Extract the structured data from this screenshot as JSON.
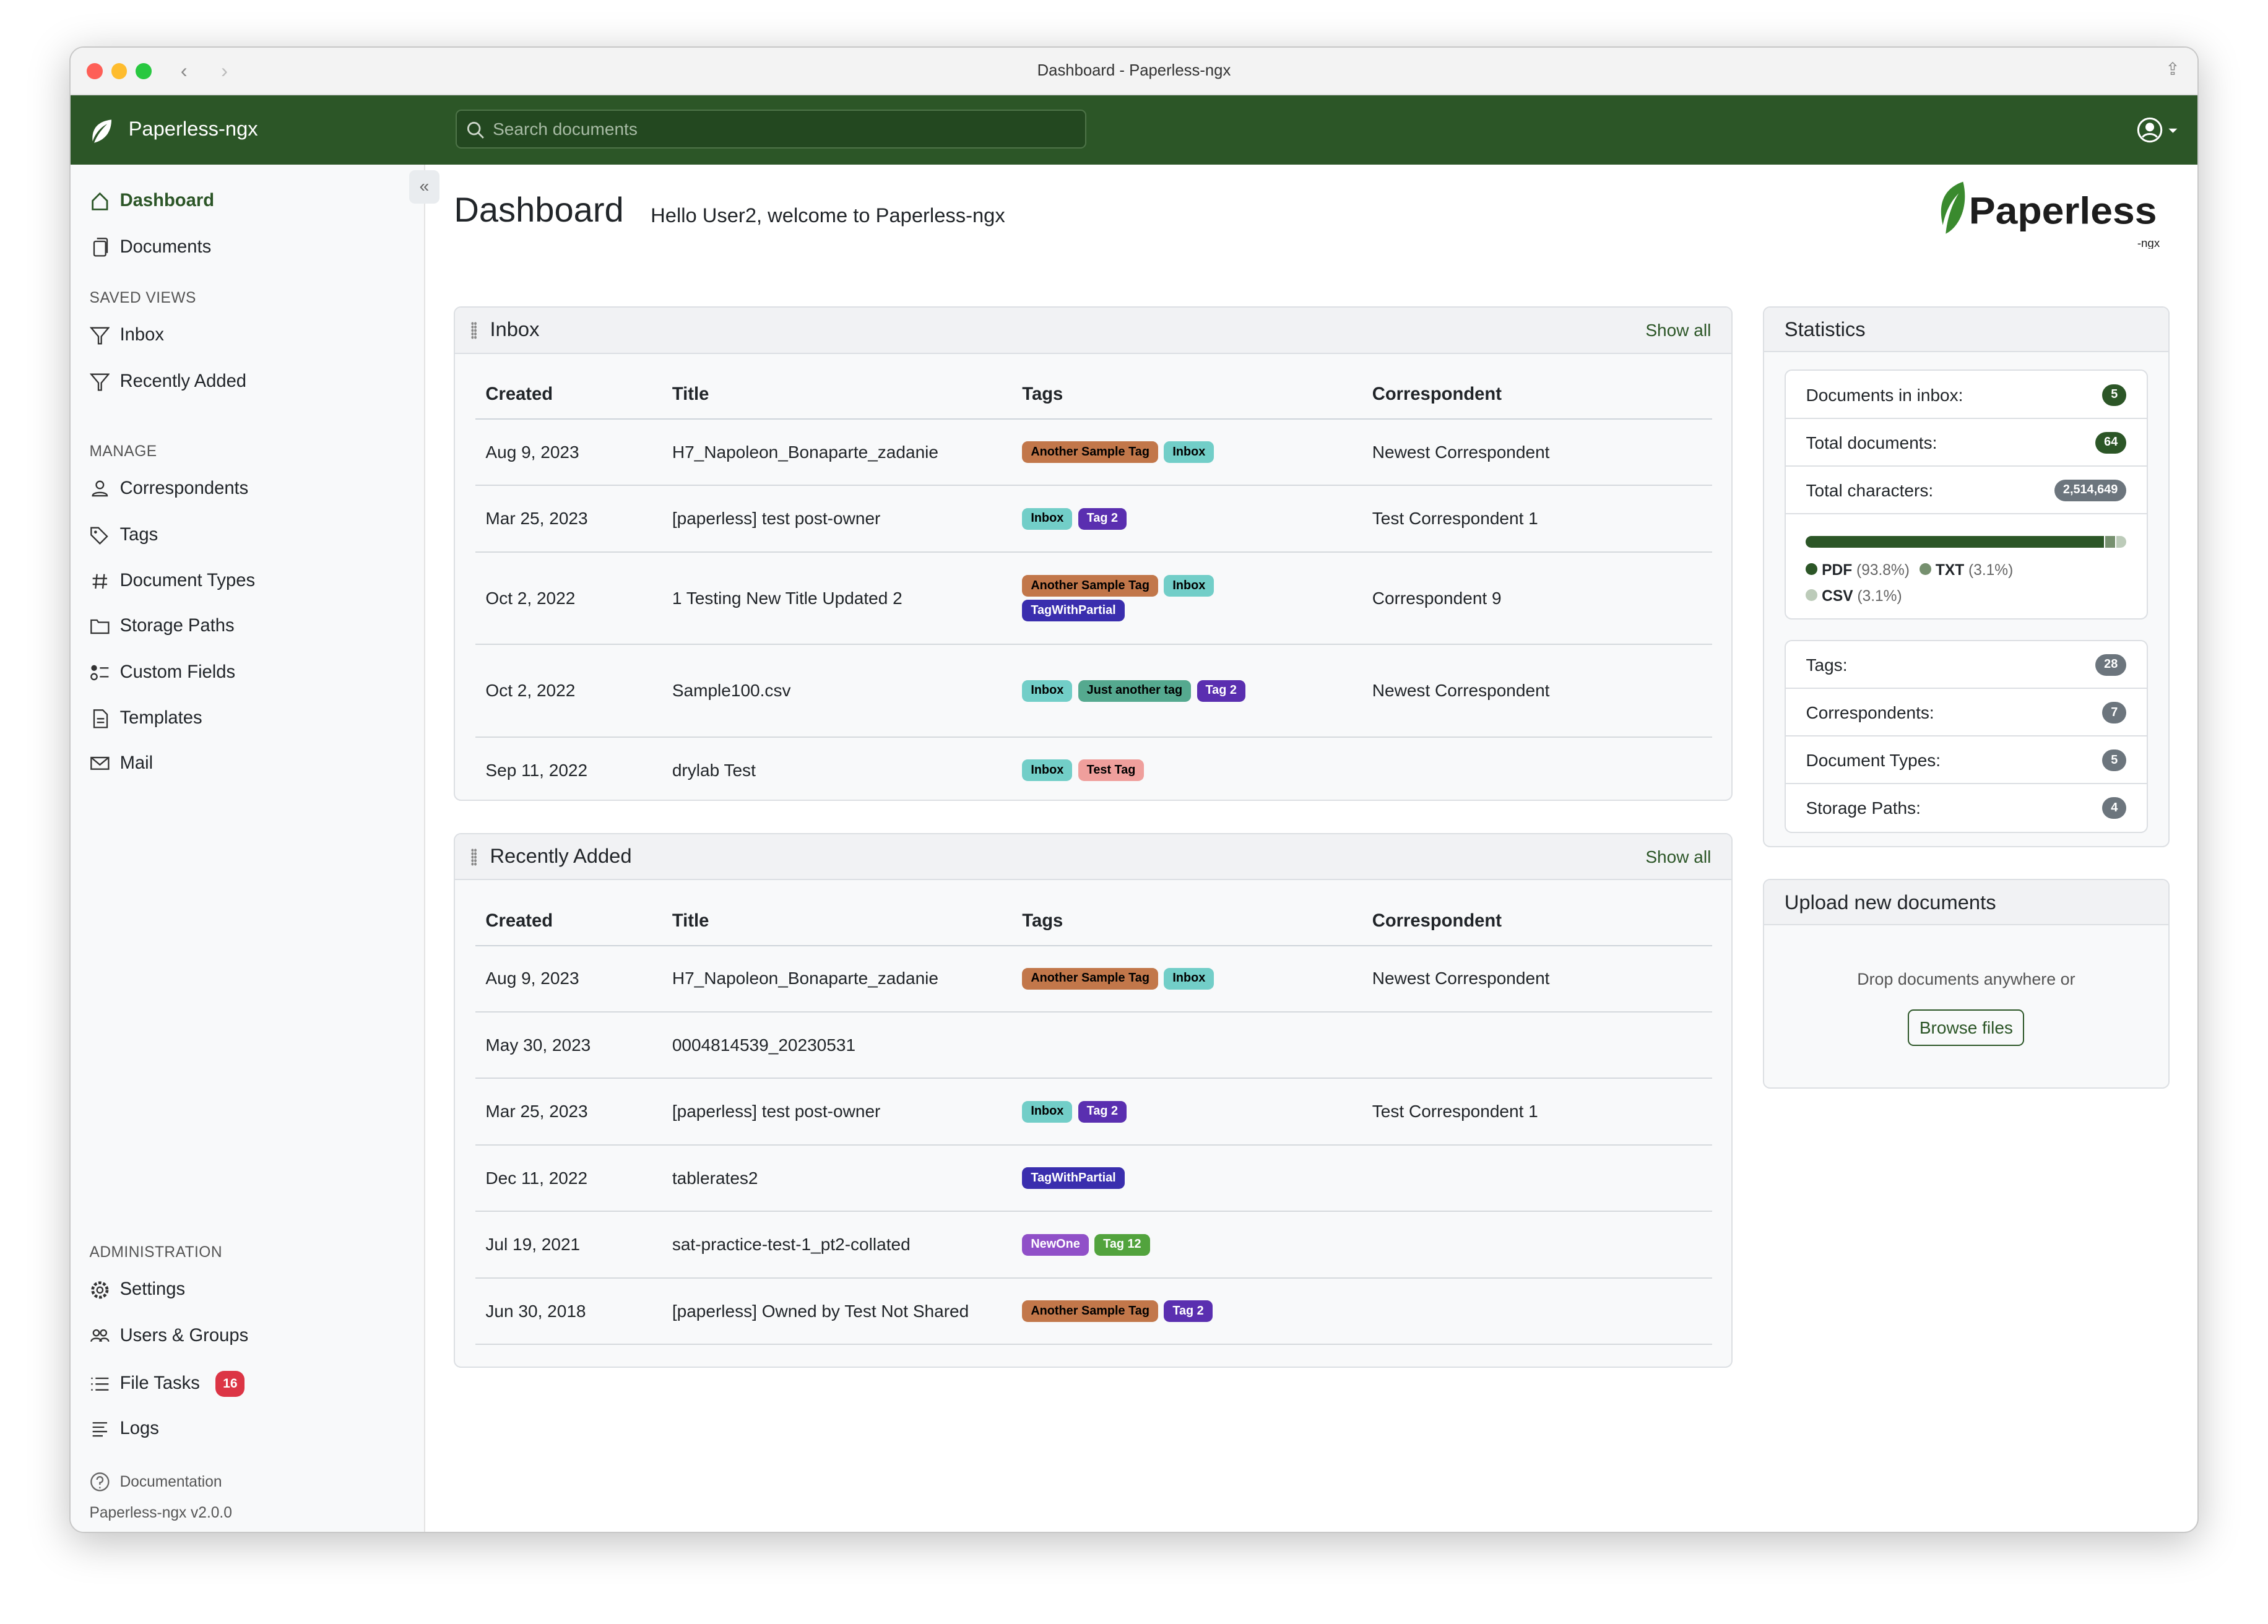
{
  "window": {
    "title": "Dashboard - Paperless-ngx"
  },
  "navbar": {
    "brand": "Paperless-ngx",
    "search_placeholder": "Search documents"
  },
  "sidebar": {
    "items": [
      {
        "label": "Dashboard"
      },
      {
        "label": "Documents"
      }
    ],
    "saved_views_heading": "SAVED VIEWS",
    "saved_views": [
      {
        "label": "Inbox"
      },
      {
        "label": "Recently Added"
      }
    ],
    "manage_heading": "MANAGE",
    "manage": [
      {
        "label": "Correspondents"
      },
      {
        "label": "Tags"
      },
      {
        "label": "Document Types"
      },
      {
        "label": "Storage Paths"
      },
      {
        "label": "Custom Fields"
      },
      {
        "label": "Templates"
      },
      {
        "label": "Mail"
      }
    ],
    "admin_heading": "ADMINISTRATION",
    "admin": [
      {
        "label": "Settings"
      },
      {
        "label": "Users & Groups"
      },
      {
        "label": "File Tasks",
        "badge": "16"
      },
      {
        "label": "Logs"
      }
    ],
    "documentation": "Documentation",
    "version": "Paperless-ngx v2.0.0"
  },
  "header": {
    "title": "Dashboard",
    "greeting": "Hello User2, welcome to Paperless-ngx",
    "logo_text": "Paperless",
    "logo_sub": "-ngx"
  },
  "columns": [
    "Created",
    "Title",
    "Tags",
    "Correspondent"
  ],
  "tag_colors": {
    "Another Sample Tag": [
      "#c2774a",
      "#000"
    ],
    "Inbox": [
      "#72cec8",
      "#000"
    ],
    "Tag 2": [
      "#5a2fb0",
      "#fff"
    ],
    "TagWithPartial": [
      "#3a2eae",
      "#fff"
    ],
    "Just another tag": [
      "#55a98f",
      "#000"
    ],
    "Test Tag": [
      "#ef9f9c",
      "#000"
    ],
    "NewOne": [
      "#9050c8",
      "#fff"
    ],
    "Tag 12": [
      "#52a33d",
      "#fff"
    ]
  },
  "inbox": {
    "title": "Inbox",
    "show_all": "Show all",
    "rows": [
      {
        "created": "Aug 9, 2023",
        "title": "H7_Napoleon_Bonaparte_zadanie",
        "tags": [
          "Another Sample Tag",
          "Inbox"
        ],
        "correspondent": "Newest Correspondent"
      },
      {
        "created": "Mar 25, 2023",
        "title": "[paperless] test post-owner",
        "tags": [
          "Inbox",
          "Tag 2"
        ],
        "correspondent": "Test Correspondent 1"
      },
      {
        "created": "Oct 2, 2022",
        "title": "1 Testing New Title Updated 2",
        "tags": [
          "Another Sample Tag",
          "Inbox",
          "TagWithPartial"
        ],
        "correspondent": "Correspondent 9"
      },
      {
        "created": "Oct 2, 2022",
        "title": "Sample100.csv",
        "tags": [
          "Inbox",
          "Just another tag",
          "Tag 2"
        ],
        "correspondent": "Newest Correspondent"
      },
      {
        "created": "Sep 11, 2022",
        "title": "drylab Test",
        "tags": [
          "Inbox",
          "Test Tag"
        ],
        "correspondent": ""
      }
    ]
  },
  "recent": {
    "title": "Recently Added",
    "show_all": "Show all",
    "rows": [
      {
        "created": "Aug 9, 2023",
        "title": "H7_Napoleon_Bonaparte_zadanie",
        "tags": [
          "Another Sample Tag",
          "Inbox"
        ],
        "correspondent": "Newest Correspondent"
      },
      {
        "created": "May 30, 2023",
        "title": "0004814539_20230531",
        "tags": [],
        "correspondent": ""
      },
      {
        "created": "Mar 25, 2023",
        "title": "[paperless] test post-owner",
        "tags": [
          "Inbox",
          "Tag 2"
        ],
        "correspondent": "Test Correspondent 1"
      },
      {
        "created": "Dec 11, 2022",
        "title": "tablerates2",
        "tags": [
          "TagWithPartial"
        ],
        "correspondent": ""
      },
      {
        "created": "Jul 19, 2021",
        "title": "sat-practice-test-1_pt2-collated",
        "tags": [
          "NewOne",
          "Tag 12"
        ],
        "correspondent": ""
      },
      {
        "created": "Jun 30, 2018",
        "title": "[paperless] Owned by Test Not Shared",
        "tags": [
          "Another Sample Tag",
          "Tag 2"
        ],
        "correspondent": ""
      }
    ]
  },
  "statistics": {
    "title": "Statistics",
    "top": [
      {
        "label": "Documents in inbox:",
        "value": "5",
        "color": "#2c5627"
      },
      {
        "label": "Total documents:",
        "value": "64",
        "color": "#2c5627"
      },
      {
        "label": "Total characters:",
        "value": "2,514,649",
        "color": "#6c757d"
      }
    ],
    "file_types": [
      {
        "name": "PDF",
        "pct": "(93.8%)",
        "value": 93.8,
        "color": "#2c5627"
      },
      {
        "name": "TXT",
        "pct": "(3.1%)",
        "value": 3.1,
        "color": "#76906f"
      },
      {
        "name": "CSV",
        "pct": "(3.1%)",
        "value": 3.1,
        "color": "#bccbb9"
      }
    ],
    "bottom": [
      {
        "label": "Tags:",
        "value": "28"
      },
      {
        "label": "Correspondents:",
        "value": "7"
      },
      {
        "label": "Document Types:",
        "value": "5"
      },
      {
        "label": "Storage Paths:",
        "value": "4"
      }
    ]
  },
  "upload": {
    "title": "Upload new documents",
    "drop_text": "Drop documents anywhere or",
    "browse": "Browse files"
  }
}
